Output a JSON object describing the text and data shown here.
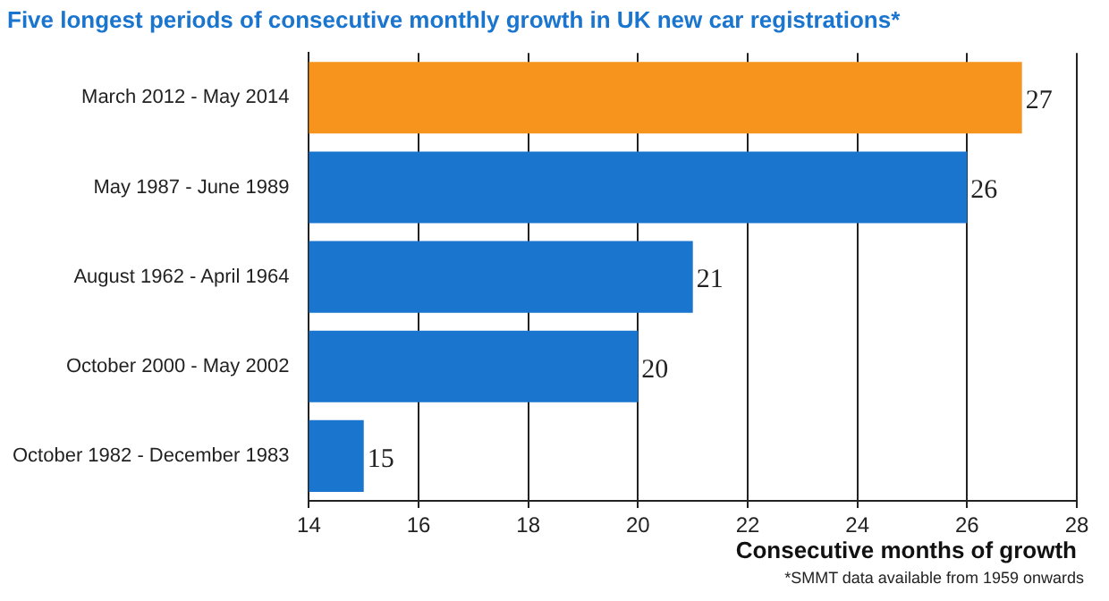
{
  "chart_data": {
    "type": "bar",
    "orientation": "horizontal",
    "title": "Five longest periods of consecutive monthly growth in UK new car registrations*",
    "categories": [
      "March 2012 - May 2014",
      "May 1987 - June 1989",
      "August 1962 - April 1964",
      "October 2000 - May 2002",
      "October 1982 - December 1983"
    ],
    "values": [
      27,
      26,
      21,
      20,
      15
    ],
    "colors": [
      "#f7941d",
      "#1a75cf",
      "#1a75cf",
      "#1a75cf",
      "#1a75cf"
    ],
    "xlim": [
      14,
      28
    ],
    "xticks": [
      14,
      16,
      18,
      20,
      22,
      24,
      26,
      28
    ],
    "xlabel": "Consecutive months of growth",
    "grid": "x",
    "data_labels": true,
    "annotations": [
      "*SMMT data available from 1959 onwards"
    ]
  }
}
